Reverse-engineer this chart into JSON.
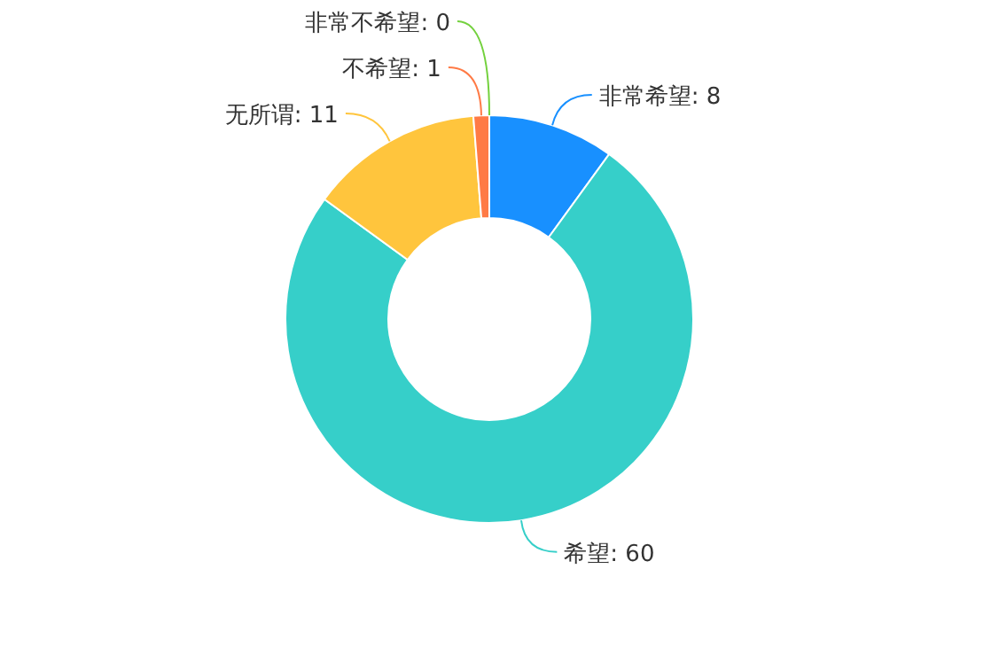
{
  "chart_data": {
    "type": "donut",
    "categories": [
      "非常希望",
      "希望",
      "无所谓",
      "不希望",
      "非常不希望"
    ],
    "values": [
      8,
      60,
      11,
      1,
      0
    ],
    "colors": [
      "#1890ff",
      "#36cfc9",
      "#ffc53d",
      "#ff7a45",
      "#73d13d"
    ],
    "value_labels": [
      ": 8",
      ": 60",
      ": 11",
      ": 1",
      ": 0"
    ]
  }
}
